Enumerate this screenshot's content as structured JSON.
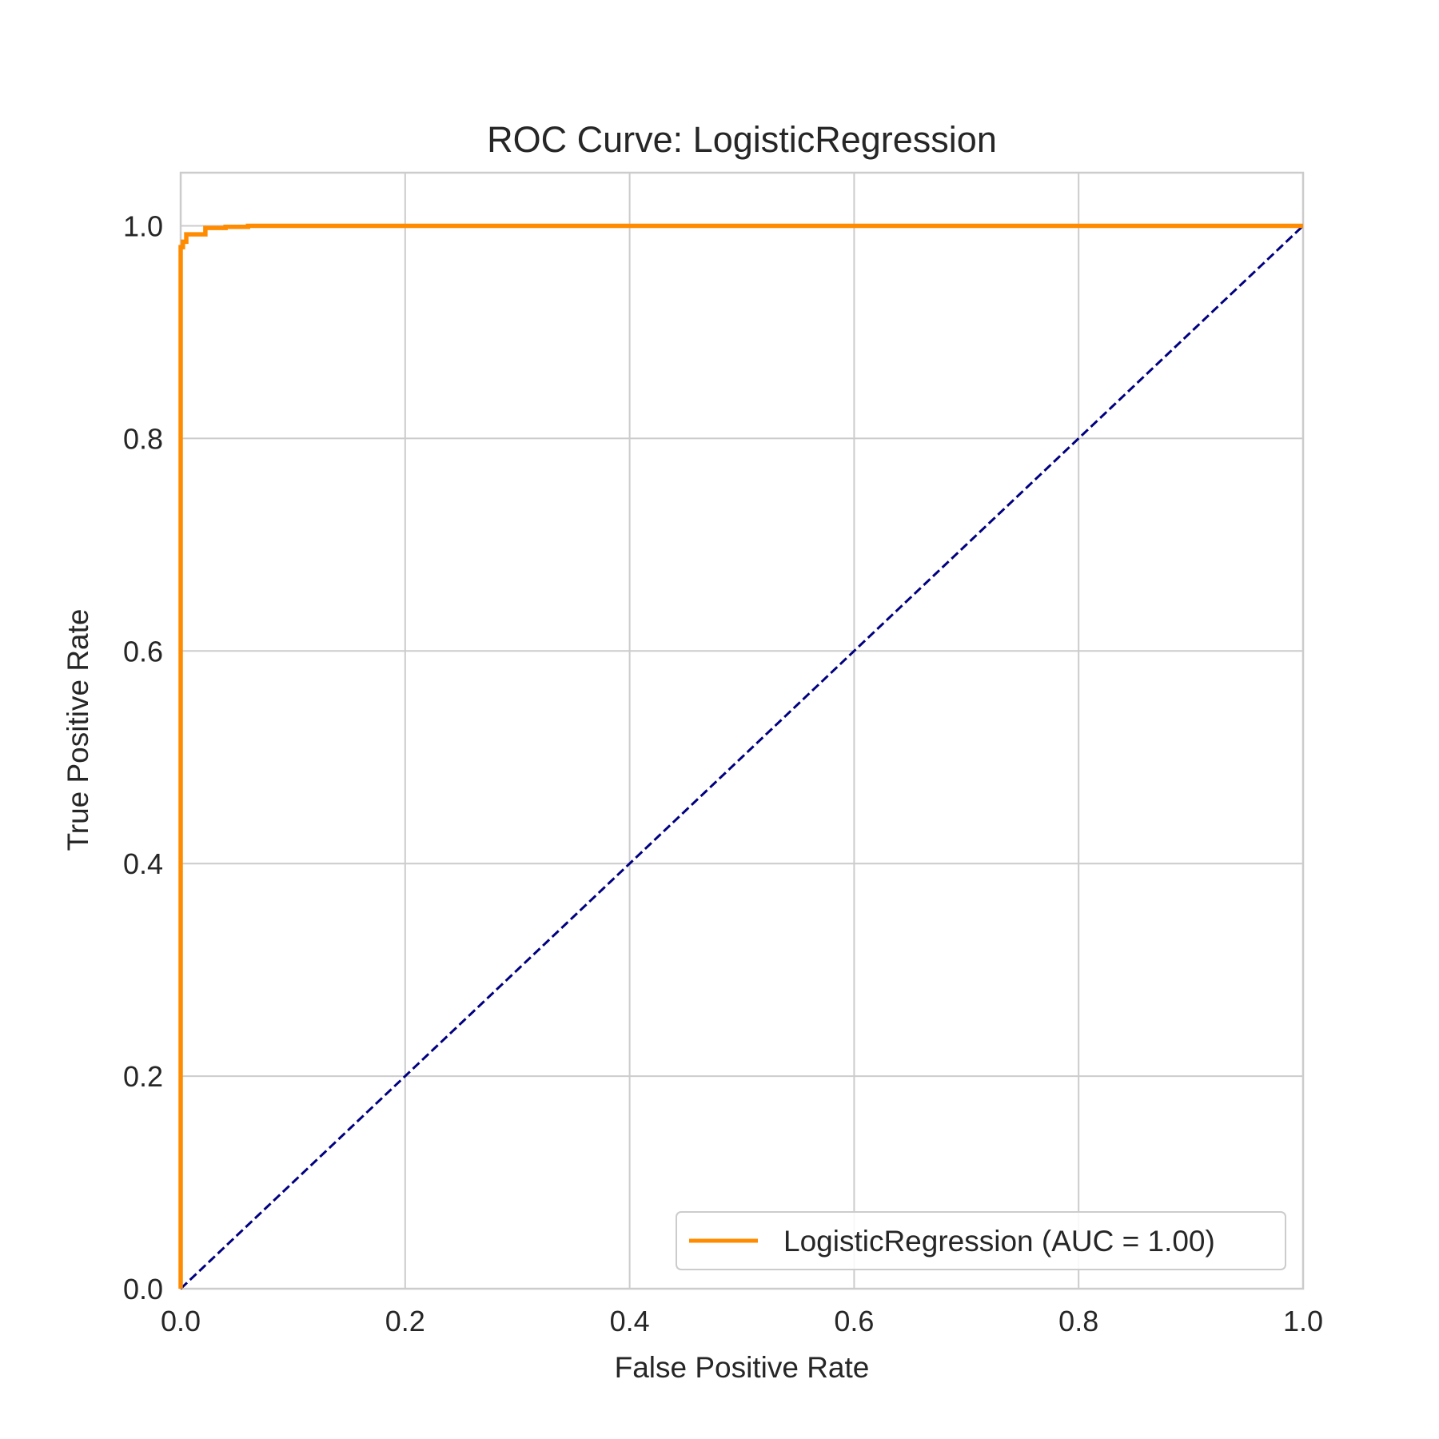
{
  "chart_data": {
    "type": "line",
    "title": "ROC Curve: LogisticRegression",
    "xlabel": "False Positive Rate",
    "ylabel": "True Positive Rate",
    "xlim": [
      0.0,
      1.0
    ],
    "ylim": [
      0.0,
      1.05
    ],
    "x_ticks": [
      0.0,
      0.2,
      0.4,
      0.6,
      0.8,
      1.0
    ],
    "y_ticks": [
      0.0,
      0.2,
      0.4,
      0.6,
      0.8,
      1.0
    ],
    "x_tick_labels": [
      "0.0",
      "0.2",
      "0.4",
      "0.6",
      "0.8",
      "1.0"
    ],
    "y_tick_labels": [
      "0.0",
      "0.2",
      "0.4",
      "0.6",
      "0.8",
      "1.0"
    ],
    "grid": true,
    "legend_position": "lower-right",
    "series": [
      {
        "name": "LogisticRegression (AUC = 1.00)",
        "color": "#ff8c00",
        "style": "solid",
        "x": [
          0.0,
          0.0,
          0.0,
          0.002,
          0.002,
          0.005,
          0.005,
          0.022,
          0.022,
          0.04,
          0.04,
          0.06,
          0.06,
          1.0
        ],
        "y": [
          0.0,
          0.97,
          0.98,
          0.98,
          0.985,
          0.985,
          0.992,
          0.992,
          0.998,
          0.998,
          0.999,
          0.999,
          1.0,
          1.0
        ]
      },
      {
        "name": "",
        "color": "#000080",
        "style": "dashed",
        "x": [
          0.0,
          1.0
        ],
        "y": [
          0.0,
          1.0
        ]
      }
    ]
  }
}
